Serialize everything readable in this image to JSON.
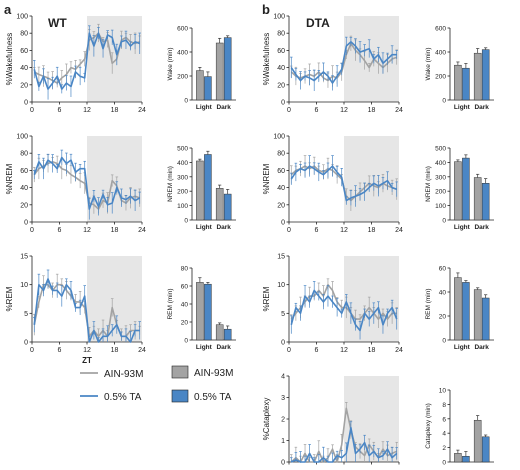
{
  "panels": [
    {
      "letter": "a",
      "title": "WT"
    },
    {
      "letter": "b",
      "title": "DTA"
    }
  ],
  "colors": {
    "gray": "#a3a3a3",
    "blue": "#4a86c5",
    "shade": "#e6e6e6",
    "axis": "#222222"
  },
  "legend": {
    "line_series": [
      "AIN-93M",
      "0.5% TA"
    ],
    "bar_series": [
      "AIN-93M",
      "0.5% TA"
    ]
  },
  "chart_data": [
    {
      "id": "wt-wake-line",
      "type": "line",
      "ylabel": "%Wakefulness",
      "xlabel": "",
      "xticks": [
        "0",
        "6",
        "12",
        "18",
        "24"
      ],
      "yticks": [
        "0",
        "20",
        "40",
        "60",
        "80",
        "100"
      ],
      "xlim": [
        0,
        24
      ],
      "ylim": [
        0,
        100
      ],
      "shaded_x": [
        12,
        24
      ],
      "series": [
        {
          "name": "AIN-93M",
          "x": [
            0,
            1,
            2,
            3,
            4,
            5,
            6,
            7,
            8,
            9,
            10,
            11,
            12,
            13,
            14,
            15,
            16,
            17,
            18,
            19,
            20,
            21,
            22,
            23
          ],
          "values": [
            35,
            32,
            30,
            28,
            25,
            22,
            28,
            32,
            40,
            38,
            44,
            50,
            72,
            75,
            80,
            70,
            72,
            45,
            50,
            72,
            75,
            70,
            68,
            70
          ]
        },
        {
          "name": "0.5% TA",
          "x": [
            0,
            1,
            2,
            3,
            4,
            5,
            6,
            7,
            8,
            9,
            10,
            11,
            12,
            13,
            14,
            15,
            16,
            17,
            18,
            19,
            20,
            21,
            22,
            23
          ],
          "values": [
            38,
            18,
            30,
            15,
            22,
            30,
            15,
            22,
            18,
            35,
            30,
            28,
            80,
            65,
            80,
            62,
            78,
            75,
            55,
            70,
            72,
            65,
            70,
            68
          ]
        }
      ]
    },
    {
      "id": "wt-wake-bar",
      "type": "bar",
      "ylabel": "Wake (min)",
      "categories": [
        "Light",
        "Dark"
      ],
      "yticks": [
        "0",
        "200",
        "400",
        "600"
      ],
      "ylim": [
        0,
        600
      ],
      "series": [
        {
          "name": "AIN-93M",
          "values": [
            245,
            475
          ]
        },
        {
          "name": "0.5% TA",
          "values": [
            195,
            520
          ]
        }
      ]
    },
    {
      "id": "wt-nrem-line",
      "type": "line",
      "ylabel": "%NREM",
      "xlabel": "",
      "xticks": [
        "0",
        "6",
        "12",
        "18",
        "24"
      ],
      "yticks": [
        "0",
        "20",
        "40",
        "60",
        "80",
        "100"
      ],
      "xlim": [
        0,
        24
      ],
      "ylim": [
        0,
        100
      ],
      "shaded_x": [
        12,
        24
      ],
      "series": [
        {
          "name": "AIN-93M",
          "x": [
            0,
            1,
            2,
            3,
            4,
            5,
            6,
            7,
            8,
            9,
            10,
            11,
            12,
            13,
            14,
            15,
            16,
            17,
            18,
            19,
            20,
            21,
            22,
            23
          ],
          "values": [
            55,
            62,
            65,
            68,
            70,
            68,
            62,
            60,
            55,
            52,
            48,
            45,
            22,
            20,
            15,
            25,
            22,
            48,
            42,
            25,
            22,
            28,
            30,
            28
          ]
        },
        {
          "name": "0.5% TA",
          "x": [
            0,
            1,
            2,
            3,
            4,
            5,
            6,
            7,
            8,
            9,
            10,
            11,
            12,
            13,
            14,
            15,
            16,
            17,
            18,
            19,
            20,
            21,
            22,
            23
          ],
          "values": [
            55,
            70,
            62,
            72,
            68,
            62,
            75,
            68,
            72,
            58,
            62,
            62,
            15,
            30,
            18,
            32,
            20,
            22,
            40,
            28,
            26,
            30,
            25,
            28
          ]
        }
      ]
    },
    {
      "id": "wt-nrem-bar",
      "type": "bar",
      "ylabel": "NREM (min)",
      "categories": [
        "Light",
        "Dark"
      ],
      "yticks": [
        "0",
        "100",
        "200",
        "300",
        "400",
        "500"
      ],
      "ylim": [
        0,
        500
      ],
      "series": [
        {
          "name": "AIN-93M",
          "values": [
            410,
            220
          ]
        },
        {
          "name": "0.5% TA",
          "values": [
            455,
            180
          ]
        }
      ]
    },
    {
      "id": "wt-rem-line",
      "type": "line",
      "ylabel": "%REM",
      "xlabel": "ZT",
      "xticks": [
        "0",
        "6",
        "12",
        "18",
        "24"
      ],
      "yticks": [
        "0",
        "5",
        "10",
        "15"
      ],
      "xlim": [
        0,
        24
      ],
      "ylim": [
        0,
        15
      ],
      "shaded_x": [
        12,
        24
      ],
      "series": [
        {
          "name": "AIN-93M",
          "x": [
            0,
            1,
            2,
            3,
            4,
            5,
            6,
            7,
            8,
            9,
            10,
            11,
            12,
            13,
            14,
            15,
            16,
            17,
            18,
            19,
            20,
            21,
            22,
            23
          ],
          "values": [
            3,
            7,
            10,
            10,
            9,
            10,
            10,
            9,
            8,
            7,
            7,
            6,
            1,
            2,
            1,
            2,
            1,
            6,
            3,
            1,
            1,
            2,
            2,
            2
          ]
        },
        {
          "name": "0.5% TA",
          "x": [
            0,
            1,
            2,
            3,
            4,
            5,
            6,
            7,
            8,
            9,
            10,
            11,
            12,
            13,
            14,
            15,
            16,
            17,
            18,
            19,
            20,
            21,
            22,
            23
          ],
          "values": [
            3,
            10,
            9,
            11,
            9,
            9,
            8,
            10,
            9,
            6,
            6,
            8,
            0,
            2,
            0,
            1,
            1,
            2,
            3,
            1,
            1,
            0,
            2,
            2
          ]
        }
      ]
    },
    {
      "id": "wt-rem-bar",
      "type": "bar",
      "ylabel": "REM (min)",
      "categories": [
        "Light",
        "Dark"
      ],
      "yticks": [
        "0",
        "20",
        "40",
        "60",
        "80"
      ],
      "ylim": [
        0,
        80
      ],
      "series": [
        {
          "name": "AIN-93M",
          "values": [
            64,
            17
          ]
        },
        {
          "name": "0.5% TA",
          "values": [
            62,
            12
          ]
        }
      ]
    },
    {
      "id": "dta-wake-line",
      "type": "line",
      "ylabel": "%Wakefulness",
      "xlabel": "",
      "xticks": [
        "0",
        "6",
        "12",
        "18",
        "24"
      ],
      "yticks": [
        "0",
        "20",
        "40",
        "60",
        "80",
        "100"
      ],
      "xlim": [
        0,
        24
      ],
      "ylim": [
        0,
        100
      ],
      "shaded_x": [
        12,
        24
      ],
      "series": [
        {
          "name": "AIN-93M",
          "x": [
            0,
            1,
            2,
            3,
            4,
            5,
            6,
            7,
            8,
            9,
            10,
            11,
            12,
            13,
            14,
            15,
            16,
            17,
            18,
            19,
            20,
            21,
            22,
            23
          ],
          "values": [
            35,
            30,
            28,
            30,
            32,
            30,
            35,
            28,
            25,
            30,
            28,
            35,
            55,
            68,
            60,
            55,
            48,
            40,
            50,
            45,
            40,
            45,
            50,
            52
          ]
        },
        {
          "name": "0.5% TA",
          "x": [
            0,
            1,
            2,
            3,
            4,
            5,
            6,
            7,
            8,
            9,
            10,
            11,
            12,
            13,
            14,
            15,
            16,
            17,
            18,
            19,
            20,
            21,
            22,
            23
          ],
          "values": [
            40,
            32,
            25,
            30,
            28,
            25,
            30,
            35,
            30,
            22,
            30,
            38,
            65,
            70,
            65,
            58,
            60,
            62,
            50,
            55,
            45,
            50,
            55,
            55
          ]
        }
      ]
    },
    {
      "id": "dta-wake-bar",
      "type": "bar",
      "ylabel": "Wake (min)",
      "categories": [
        "Light",
        "Dark"
      ],
      "yticks": [
        "0",
        "200",
        "400",
        "600"
      ],
      "ylim": [
        0,
        600
      ],
      "series": [
        {
          "name": "AIN-93M",
          "values": [
            290,
            390
          ]
        },
        {
          "name": "0.5% TA",
          "values": [
            265,
            420
          ]
        }
      ]
    },
    {
      "id": "dta-nrem-line",
      "type": "line",
      "ylabel": "%NREM",
      "xlabel": "",
      "xticks": [
        "0",
        "6",
        "12",
        "18",
        "24"
      ],
      "yticks": [
        "0",
        "20",
        "40",
        "60",
        "80",
        "100"
      ],
      "xlim": [
        0,
        24
      ],
      "ylim": [
        0,
        100
      ],
      "shaded_x": [
        12,
        24
      ],
      "series": [
        {
          "name": "AIN-93M",
          "x": [
            0,
            1,
            2,
            3,
            4,
            5,
            6,
            7,
            8,
            9,
            10,
            11,
            12,
            13,
            14,
            15,
            16,
            17,
            18,
            19,
            20,
            21,
            22,
            23
          ],
          "values": [
            55,
            60,
            62,
            65,
            62,
            65,
            60,
            58,
            62,
            60,
            55,
            50,
            30,
            25,
            30,
            35,
            40,
            45,
            42,
            40,
            45,
            42,
            40,
            38
          ]
        },
        {
          "name": "0.5% TA",
          "x": [
            0,
            1,
            2,
            3,
            4,
            5,
            6,
            7,
            8,
            9,
            10,
            11,
            12,
            13,
            14,
            15,
            16,
            17,
            18,
            19,
            20,
            21,
            22,
            23
          ],
          "values": [
            50,
            58,
            62,
            60,
            65,
            62,
            58,
            55,
            60,
            65,
            58,
            52,
            25,
            28,
            30,
            32,
            35,
            40,
            45,
            42,
            45,
            48,
            40,
            38
          ]
        }
      ]
    },
    {
      "id": "dta-nrem-bar",
      "type": "bar",
      "ylabel": "NREM (min)",
      "categories": [
        "Light",
        "Dark"
      ],
      "yticks": [
        "0",
        "100",
        "200",
        "300",
        "400",
        "500"
      ],
      "ylim": [
        0,
        500
      ],
      "series": [
        {
          "name": "AIN-93M",
          "values": [
            405,
            295
          ]
        },
        {
          "name": "0.5% TA",
          "values": [
            430,
            255
          ]
        }
      ]
    },
    {
      "id": "dta-rem-line",
      "type": "line",
      "ylabel": "%REM",
      "xlabel": "",
      "xticks": [
        "0",
        "6",
        "12",
        "18",
        "24"
      ],
      "yticks": [
        "0",
        "5",
        "10",
        "15"
      ],
      "xlim": [
        0,
        24
      ],
      "ylim": [
        0,
        15
      ],
      "shaded_x": [
        12,
        24
      ],
      "series": [
        {
          "name": "AIN-93M",
          "x": [
            0,
            1,
            2,
            3,
            4,
            5,
            6,
            7,
            8,
            9,
            10,
            11,
            12,
            13,
            14,
            15,
            16,
            17,
            18,
            19,
            20,
            21,
            22,
            23
          ],
          "values": [
            4,
            5,
            6,
            7,
            8,
            8,
            9,
            8,
            10,
            9,
            7,
            6,
            6,
            5,
            4,
            4,
            5,
            6,
            5,
            4,
            5,
            4,
            5,
            5
          ]
        },
        {
          "name": "0.5% TA",
          "x": [
            0,
            1,
            2,
            3,
            4,
            5,
            6,
            7,
            8,
            9,
            10,
            11,
            12,
            13,
            14,
            15,
            16,
            17,
            18,
            19,
            20,
            21,
            22,
            23
          ],
          "values": [
            3,
            6,
            5,
            8,
            7,
            9,
            8,
            7,
            8,
            7,
            6,
            5,
            7,
            5,
            3,
            2,
            5,
            4,
            5,
            6,
            3,
            5,
            6,
            4
          ]
        }
      ]
    },
    {
      "id": "dta-rem-bar",
      "type": "bar",
      "ylabel": "REM (min)",
      "categories": [
        "Light",
        "Dark"
      ],
      "yticks": [
        "0",
        "20",
        "40",
        "60"
      ],
      "ylim": [
        0,
        60
      ],
      "series": [
        {
          "name": "AIN-93M",
          "values": [
            52,
            42
          ]
        },
        {
          "name": "0.5% TA",
          "values": [
            48,
            35
          ]
        }
      ]
    },
    {
      "id": "dta-cat-line",
      "type": "line",
      "ylabel": "%Cataplexy",
      "xlabel": "ZT",
      "xticks": [
        "0",
        "6",
        "12",
        "18",
        "24"
      ],
      "yticks": [
        "0",
        "1",
        "2",
        "3",
        "4"
      ],
      "xlim": [
        0,
        24
      ],
      "ylim": [
        0,
        4
      ],
      "shaded_x": [
        12,
        24
      ],
      "series": [
        {
          "name": "AIN-93M",
          "x": [
            0,
            1,
            2,
            3,
            4,
            5,
            6,
            7,
            8,
            9,
            10,
            11,
            12,
            13,
            14,
            15,
            16,
            17,
            18,
            19,
            20,
            21,
            22,
            23
          ],
          "values": [
            0,
            0.2,
            0,
            0.4,
            0,
            0,
            0.5,
            0,
            0.2,
            0.6,
            0,
            0.8,
            2.5,
            1.5,
            0.7,
            0.5,
            0.3,
            0.8,
            0.5,
            0.2,
            0.6,
            0.3,
            0.4,
            0.5
          ]
        },
        {
          "name": "0.5% TA",
          "x": [
            0,
            1,
            2,
            3,
            4,
            5,
            6,
            7,
            8,
            9,
            10,
            11,
            12,
            13,
            14,
            15,
            16,
            17,
            18,
            19,
            20,
            21,
            22,
            23
          ],
          "values": [
            0,
            0.1,
            0,
            0,
            0.4,
            0,
            0,
            0.2,
            0,
            0,
            0.3,
            0.2,
            0.4,
            1.6,
            0.4,
            0.6,
            0.9,
            0.3,
            0.5,
            0.2,
            0.3,
            0.6,
            0.2,
            0.4
          ]
        }
      ]
    },
    {
      "id": "dta-cat-bar",
      "type": "bar",
      "ylabel": "Cataplexy (min)",
      "categories": [
        "Light",
        "Dark"
      ],
      "yticks": [
        "0",
        "2",
        "4",
        "6",
        "8",
        "10"
      ],
      "ylim": [
        0,
        10
      ],
      "series": [
        {
          "name": "AIN-93M",
          "values": [
            1.2,
            5.8
          ]
        },
        {
          "name": "0.5% TA",
          "values": [
            0.8,
            3.5
          ]
        }
      ]
    }
  ]
}
